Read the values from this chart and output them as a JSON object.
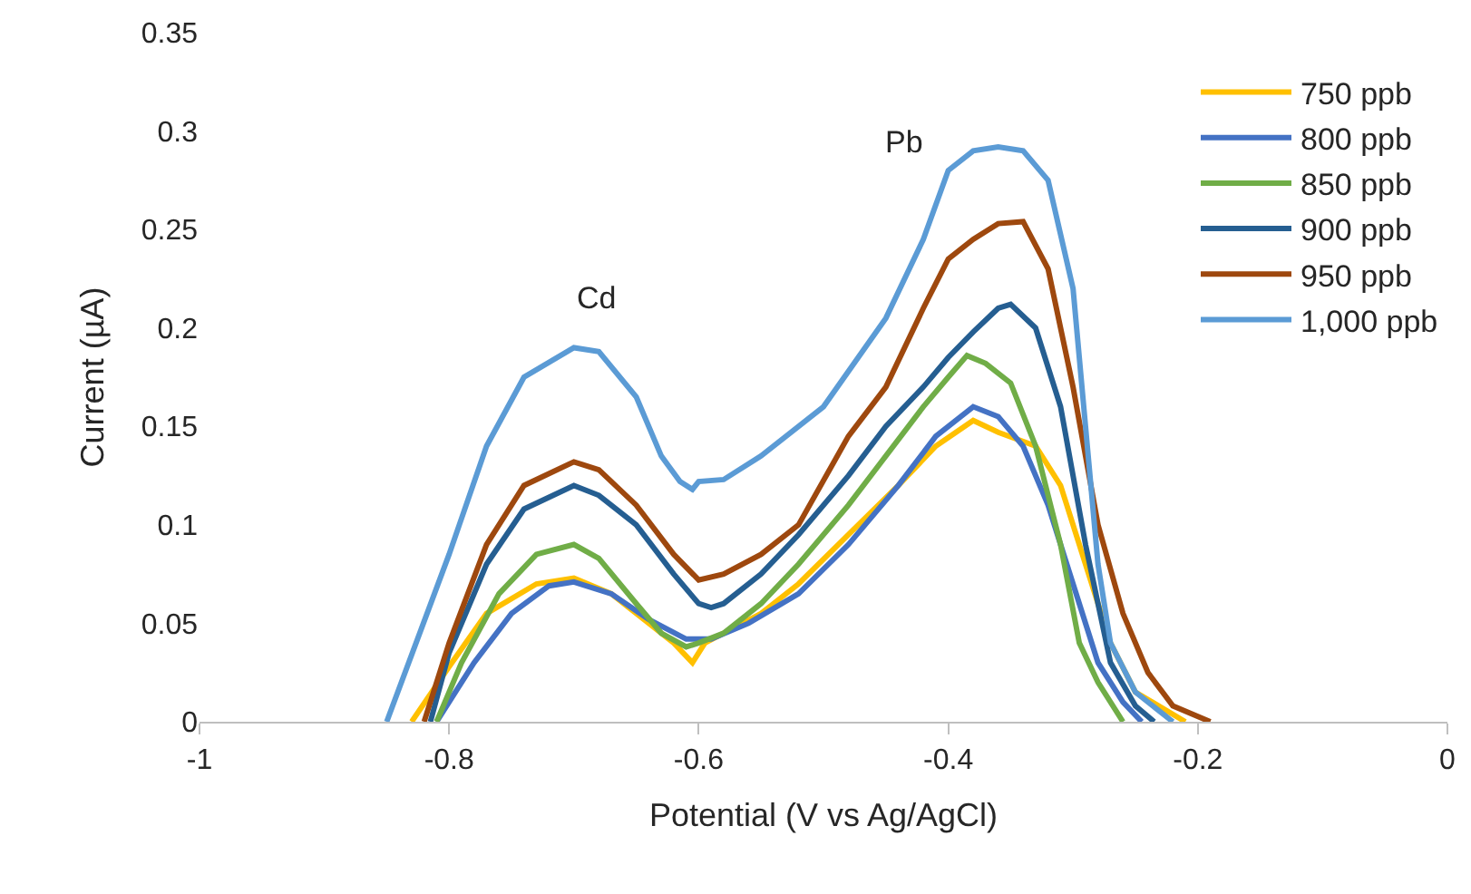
{
  "chart_data": {
    "type": "line",
    "xlabel": "Potential (V vs Ag/AgCl)",
    "ylabel": "Current (µA)",
    "xlim": [
      -1,
      0
    ],
    "xticks": [
      -1,
      -0.8,
      -0.6,
      -0.4,
      -0.2,
      0
    ],
    "ylim": [
      0,
      0.35
    ],
    "yticks": [
      0,
      0.05,
      0.1,
      0.15,
      0.2,
      0.25,
      0.3,
      0.35
    ],
    "grid": false,
    "legend": "top right",
    "marker": "none",
    "line_style": "solid",
    "annotations": [
      "Cd",
      "Pb"
    ],
    "series": [
      {
        "name": "750 ppb",
        "color": "#ffc000",
        "x": [
          -0.83,
          -0.8,
          -0.77,
          -0.73,
          -0.7,
          -0.67,
          -0.64,
          -0.62,
          -0.605,
          -0.595,
          -0.58,
          -0.55,
          -0.52,
          -0.48,
          -0.44,
          -0.41,
          -0.38,
          -0.36,
          -0.33,
          -0.31,
          -0.29,
          -0.27,
          -0.25,
          -0.21
        ],
        "values": [
          0,
          0.028,
          0.055,
          0.07,
          0.073,
          0.065,
          0.05,
          0.04,
          0.03,
          0.04,
          0.045,
          0.055,
          0.07,
          0.095,
          0.12,
          0.14,
          0.153,
          0.147,
          0.14,
          0.12,
          0.08,
          0.04,
          0.015,
          0
        ]
      },
      {
        "name": "800 ppb",
        "color": "#4472c4",
        "x": [
          -0.81,
          -0.78,
          -0.75,
          -0.72,
          -0.7,
          -0.67,
          -0.64,
          -0.61,
          -0.59,
          -0.56,
          -0.52,
          -0.48,
          -0.44,
          -0.41,
          -0.38,
          -0.36,
          -0.34,
          -0.32,
          -0.3,
          -0.28,
          -0.26,
          -0.245
        ],
        "values": [
          0,
          0.03,
          0.055,
          0.069,
          0.071,
          0.065,
          0.052,
          0.042,
          0.042,
          0.05,
          0.065,
          0.09,
          0.12,
          0.145,
          0.16,
          0.155,
          0.14,
          0.11,
          0.07,
          0.03,
          0.01,
          0
        ]
      },
      {
        "name": "850 ppb",
        "color": "#70ad47",
        "x": [
          -0.81,
          -0.79,
          -0.76,
          -0.73,
          -0.7,
          -0.68,
          -0.65,
          -0.63,
          -0.61,
          -0.6,
          -0.58,
          -0.55,
          -0.52,
          -0.48,
          -0.45,
          -0.42,
          -0.4,
          -0.385,
          -0.37,
          -0.35,
          -0.33,
          -0.31,
          -0.295,
          -0.28,
          -0.26
        ],
        "values": [
          0,
          0.03,
          0.065,
          0.085,
          0.09,
          0.083,
          0.06,
          0.045,
          0.038,
          0.04,
          0.045,
          0.06,
          0.08,
          0.11,
          0.135,
          0.16,
          0.175,
          0.186,
          0.182,
          0.172,
          0.14,
          0.09,
          0.04,
          0.02,
          0
        ]
      },
      {
        "name": "900 ppb",
        "color": "#255e91",
        "x": [
          -0.815,
          -0.8,
          -0.77,
          -0.74,
          -0.7,
          -0.68,
          -0.65,
          -0.62,
          -0.6,
          -0.59,
          -0.58,
          -0.55,
          -0.52,
          -0.48,
          -0.45,
          -0.42,
          -0.4,
          -0.38,
          -0.36,
          -0.35,
          -0.33,
          -0.31,
          -0.29,
          -0.27,
          -0.25,
          -0.235
        ],
        "values": [
          0,
          0.035,
          0.08,
          0.108,
          0.12,
          0.115,
          0.1,
          0.075,
          0.06,
          0.058,
          0.06,
          0.075,
          0.095,
          0.125,
          0.15,
          0.17,
          0.185,
          0.198,
          0.21,
          0.212,
          0.2,
          0.16,
          0.09,
          0.03,
          0.008,
          0
        ]
      },
      {
        "name": "950 ppb",
        "color": "#9e480e",
        "x": [
          -0.82,
          -0.8,
          -0.77,
          -0.74,
          -0.7,
          -0.68,
          -0.65,
          -0.62,
          -0.6,
          -0.58,
          -0.55,
          -0.52,
          -0.48,
          -0.45,
          -0.42,
          -0.4,
          -0.38,
          -0.36,
          -0.34,
          -0.32,
          -0.3,
          -0.28,
          -0.26,
          -0.24,
          -0.22,
          -0.19
        ],
        "values": [
          0,
          0.04,
          0.09,
          0.12,
          0.132,
          0.128,
          0.11,
          0.085,
          0.072,
          0.075,
          0.085,
          0.1,
          0.145,
          0.17,
          0.21,
          0.235,
          0.245,
          0.253,
          0.254,
          0.23,
          0.17,
          0.1,
          0.055,
          0.025,
          0.008,
          0
        ]
      },
      {
        "name": "1,000 ppb",
        "color": "#5b9bd5",
        "x": [
          -0.85,
          -0.8,
          -0.77,
          -0.74,
          -0.7,
          -0.68,
          -0.65,
          -0.63,
          -0.615,
          -0.605,
          -0.6,
          -0.58,
          -0.55,
          -0.5,
          -0.45,
          -0.42,
          -0.4,
          -0.38,
          -0.36,
          -0.34,
          -0.32,
          -0.3,
          -0.29,
          -0.28,
          -0.27,
          -0.25,
          -0.22
        ],
        "values": [
          0,
          0.085,
          0.14,
          0.175,
          0.19,
          0.188,
          0.165,
          0.135,
          0.122,
          0.118,
          0.122,
          0.123,
          0.135,
          0.16,
          0.205,
          0.245,
          0.28,
          0.29,
          0.292,
          0.29,
          0.275,
          0.22,
          0.15,
          0.08,
          0.04,
          0.015,
          0
        ]
      }
    ]
  }
}
